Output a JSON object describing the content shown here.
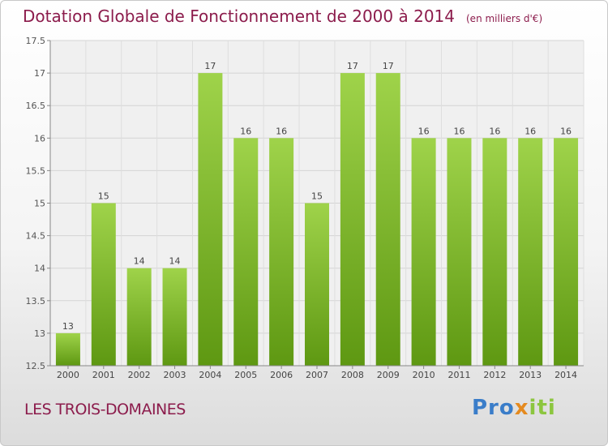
{
  "title": "Dotation Globale de Fonctionnement de 2000 à 2014",
  "subtitle": "(en milliers d'€)",
  "place_name": "LES TROIS-DOMAINES",
  "logo": {
    "part1": "Pro",
    "part2": "x",
    "part3": "iti"
  },
  "colors": {
    "bar_light": "#9fd34a",
    "bar_dark": "#5e9812",
    "title": "#8c1c4c"
  },
  "chart_data": {
    "type": "bar",
    "categories": [
      "2000",
      "2001",
      "2002",
      "2003",
      "2004",
      "2005",
      "2006",
      "2007",
      "2008",
      "2009",
      "2010",
      "2011",
      "2012",
      "2013",
      "2014"
    ],
    "values": [
      13,
      15,
      14,
      14,
      17,
      16,
      16,
      15,
      17,
      17,
      16,
      16,
      16,
      16,
      16
    ],
    "data_labels": [
      "13",
      "15",
      "14",
      "14",
      "17",
      "16",
      "16",
      "15",
      "17",
      "17",
      "16",
      "16",
      "16",
      "16",
      "16"
    ],
    "ylim": [
      12.5,
      17.5
    ],
    "yticks": [
      12.5,
      13,
      13.5,
      14,
      14.5,
      15,
      15.5,
      16,
      16.5,
      17,
      17.5
    ],
    "ytick_labels": [
      "12.5",
      "13",
      "13.5",
      "14",
      "14.5",
      "15",
      "15.5",
      "16",
      "16.5",
      "17",
      "17.5"
    ],
    "grid": true
  }
}
